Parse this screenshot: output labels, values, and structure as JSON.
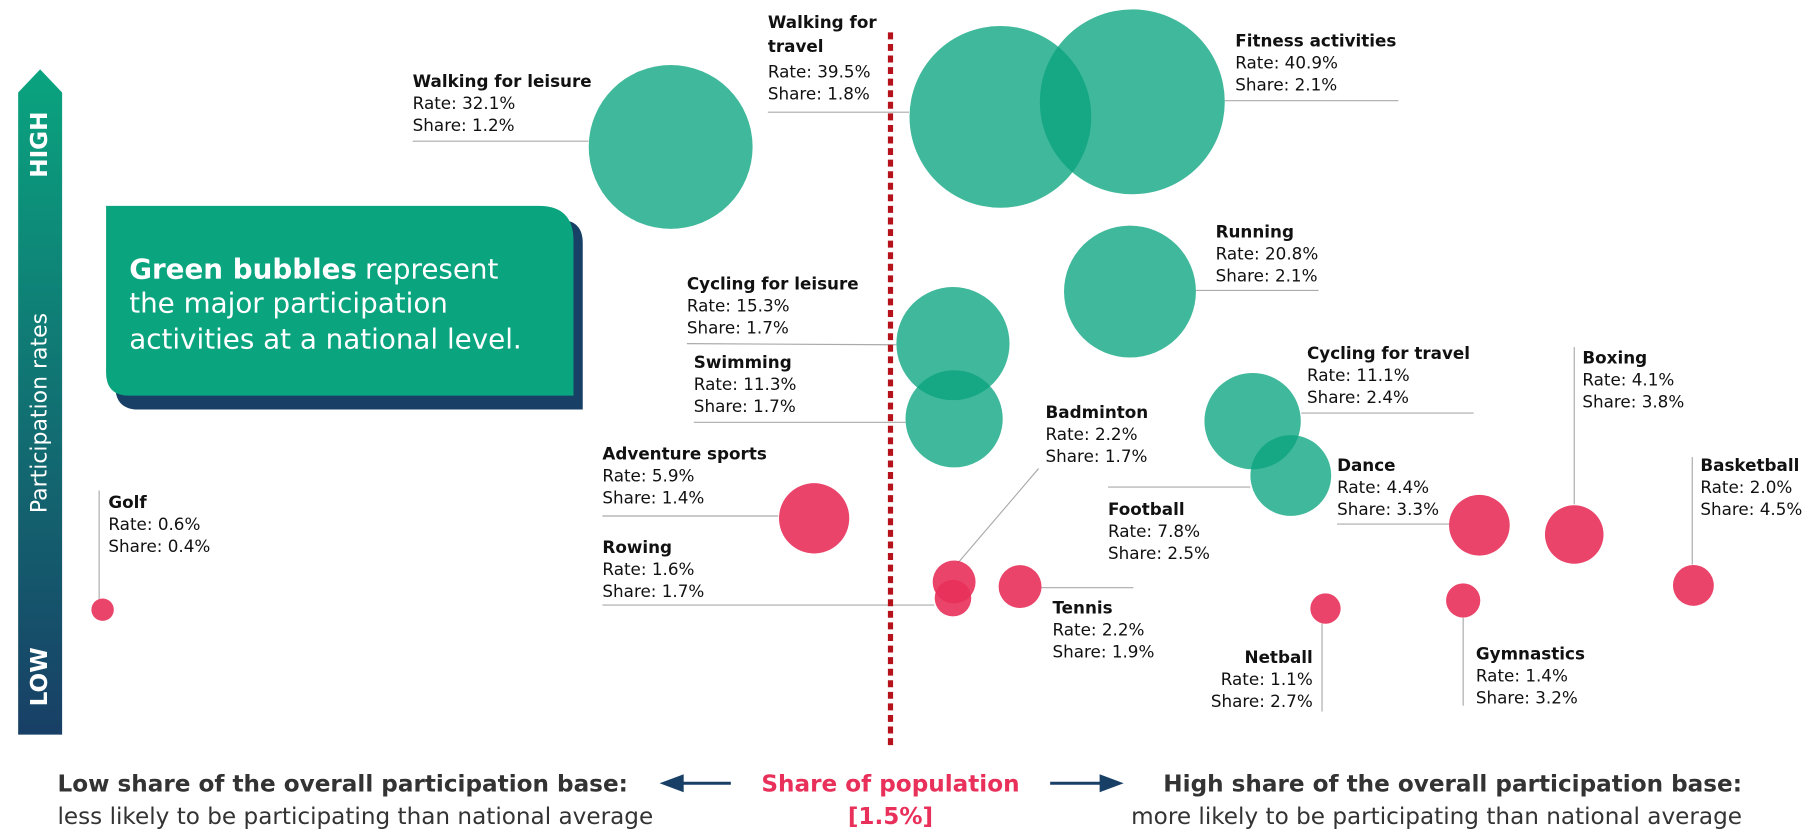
{
  "chart_data": {
    "type": "bubble",
    "axis_label": "Participation rates",
    "axis_high": "HIGH",
    "axis_low": "LOW",
    "callout_bold": "Green bubbles",
    "callout_lines": [
      "represent",
      "the major participation",
      "activities at a national level."
    ],
    "center_label": "Share of population",
    "center_value": "[1.5%]",
    "left_title": "Low share of the overall participation base:",
    "left_text": "less likely to be participating than national average",
    "right_title": "High share of the overall participation base:",
    "right_text": "more likely to be participating than national average",
    "colors": {
      "major": "#0aa47f",
      "minor": "#e8305a"
    },
    "items": [
      {
        "name": "Walking for leisure",
        "rate": 32.1,
        "rate_label": "Rate: 32.1%",
        "share": 1.2,
        "share_label": "Share: 1.2%",
        "group": "major"
      },
      {
        "name": "Walking for travel",
        "rate": 39.5,
        "rate_label": "Rate: 39.5%",
        "share": 1.8,
        "share_label": "Share: 1.8%",
        "group": "major"
      },
      {
        "name": "Fitness activities",
        "rate": 40.9,
        "rate_label": "Rate: 40.9%",
        "share": 2.1,
        "share_label": "Share: 2.1%",
        "group": "major"
      },
      {
        "name": "Running",
        "rate": 20.8,
        "rate_label": "Rate: 20.8%",
        "share": 2.1,
        "share_label": "Share: 2.1%",
        "group": "major"
      },
      {
        "name": "Cycling for leisure",
        "rate": 15.3,
        "rate_label": "Rate: 15.3%",
        "share": 1.7,
        "share_label": "Share: 1.7%",
        "group": "major"
      },
      {
        "name": "Swimming",
        "rate": 11.3,
        "rate_label": "Rate: 11.3%",
        "share": 1.7,
        "share_label": "Share: 1.7%",
        "group": "major"
      },
      {
        "name": "Adventure sports",
        "rate": 5.9,
        "rate_label": "Rate: 5.9%",
        "share": 1.4,
        "share_label": "Share: 1.4%",
        "group": "minor"
      },
      {
        "name": "Rowing",
        "rate": 1.6,
        "rate_label": "Rate: 1.6%",
        "share": 1.7,
        "share_label": "Share: 1.7%",
        "group": "minor"
      },
      {
        "name": "Badminton",
        "rate": 2.2,
        "rate_label": "Rate: 2.2%",
        "share": 1.7,
        "share_label": "Share: 1.7%",
        "group": "minor"
      },
      {
        "name": "Tennis",
        "rate": 2.2,
        "rate_label": "Rate: 2.2%",
        "share": 1.9,
        "share_label": "Share: 1.9%",
        "group": "minor"
      },
      {
        "name": "Cycling for travel",
        "rate": 11.1,
        "rate_label": "Rate: 11.1%",
        "share": 2.4,
        "share_label": "Share: 2.4%",
        "group": "major"
      },
      {
        "name": "Football",
        "rate": 7.8,
        "rate_label": "Rate: 7.8%",
        "share": 2.5,
        "share_label": "Share: 2.5%",
        "group": "major"
      },
      {
        "name": "Dance",
        "rate": 4.4,
        "rate_label": "Rate: 4.4%",
        "share": 3.3,
        "share_label": "Share: 3.3%",
        "group": "minor"
      },
      {
        "name": "Boxing",
        "rate": 4.1,
        "rate_label": "Rate: 4.1%",
        "share": 3.8,
        "share_label": "Share: 3.8%",
        "group": "minor"
      },
      {
        "name": "Basketball",
        "rate": 2.0,
        "rate_label": "Rate: 2.0%",
        "share": 4.5,
        "share_label": "Share: 4.5%",
        "group": "minor"
      },
      {
        "name": "Netball",
        "rate": 1.1,
        "rate_label": "Rate: 1.1%",
        "share": 2.7,
        "share_label": "Share: 2.7%",
        "group": "minor"
      },
      {
        "name": "Gymnastics",
        "rate": 1.4,
        "rate_label": "Rate: 1.4%",
        "share": 3.2,
        "share_label": "Share: 3.2%",
        "group": "minor"
      },
      {
        "name": "Golf",
        "rate": 0.6,
        "rate_label": "Rate: 0.6%",
        "share": 0.4,
        "share_label": "Share: 0.4%",
        "group": "minor"
      }
    ]
  }
}
